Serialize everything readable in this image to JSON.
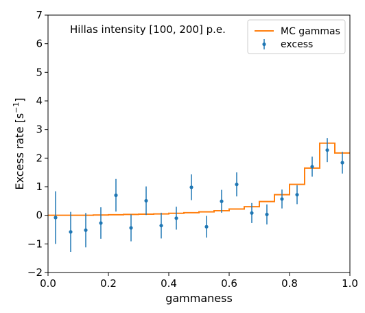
{
  "chart_data": {
    "type": "scatter",
    "annotation": "Hillas intensity [100, 200] p.e.",
    "xlabel": "gammaness",
    "ylabel_main": "Excess rate [s",
    "ylabel_sup": "−1",
    "ylabel_end": "]",
    "xlim": [
      0.0,
      1.0
    ],
    "ylim": [
      -2,
      7
    ],
    "xticks": [
      0.0,
      0.2,
      0.4,
      0.6,
      0.8,
      1.0
    ],
    "xtick_labels": [
      "0.0",
      "0.2",
      "0.4",
      "0.6",
      "0.8",
      "1.0"
    ],
    "yticks": [
      -2,
      -1,
      0,
      1,
      2,
      3,
      4,
      5,
      6,
      7
    ],
    "ytick_labels": [
      "−2",
      "−1",
      "0",
      "1",
      "2",
      "3",
      "4",
      "5",
      "6",
      "7"
    ],
    "grid": false,
    "legend_position": "top-right",
    "series": [
      {
        "name": "MC gammas",
        "kind": "step",
        "color": "#ff7f0e",
        "bin_edges": [
          0.0,
          0.05,
          0.1,
          0.15,
          0.2,
          0.25,
          0.3,
          0.35,
          0.4,
          0.45,
          0.5,
          0.55,
          0.6,
          0.65,
          0.7,
          0.75,
          0.8,
          0.85,
          0.9,
          0.95,
          1.0
        ],
        "values": [
          0.0,
          0.0,
          0.0,
          0.01,
          0.02,
          0.03,
          0.04,
          0.05,
          0.07,
          0.09,
          0.12,
          0.16,
          0.22,
          0.3,
          0.48,
          0.72,
          1.08,
          1.65,
          2.52,
          2.18
        ]
      },
      {
        "name": "excess",
        "kind": "errorbar",
        "color": "#1f77b4",
        "x": [
          0.025,
          0.075,
          0.125,
          0.175,
          0.225,
          0.275,
          0.325,
          0.375,
          0.425,
          0.475,
          0.525,
          0.575,
          0.625,
          0.675,
          0.725,
          0.775,
          0.825,
          0.875,
          0.925,
          0.975
        ],
        "y": [
          -0.08,
          -0.58,
          -0.52,
          -0.27,
          0.7,
          -0.44,
          0.51,
          -0.36,
          -0.1,
          0.98,
          -0.4,
          0.49,
          1.08,
          0.08,
          0.03,
          0.57,
          0.72,
          1.7,
          2.28,
          1.84
        ],
        "yerr": [
          0.92,
          0.7,
          0.6,
          0.55,
          0.57,
          0.47,
          0.5,
          0.45,
          0.4,
          0.45,
          0.38,
          0.4,
          0.42,
          0.35,
          0.35,
          0.33,
          0.33,
          0.35,
          0.42,
          0.38
        ]
      }
    ]
  }
}
